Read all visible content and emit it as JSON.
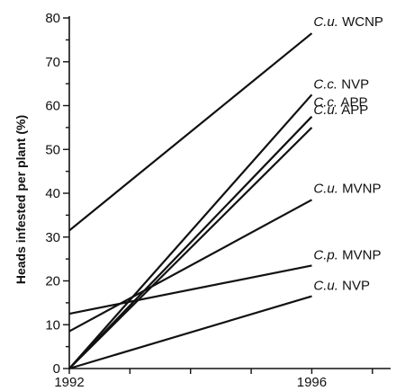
{
  "chart_data": {
    "type": "line",
    "ylabel": "Heads infested per plant (%)",
    "xlabel": "",
    "title": "",
    "x": [
      1992,
      1996
    ],
    "xticks": [
      1992,
      1996
    ],
    "xlim": [
      1992,
      1997.3
    ],
    "ylim": [
      0,
      80
    ],
    "yticks": [
      0,
      10,
      20,
      30,
      40,
      50,
      60,
      70,
      80
    ],
    "grid": false,
    "series": [
      {
        "name": "C.u. WCNP",
        "prefix": "C.u.",
        "site": " WCNP",
        "values": [
          31.5,
          76.5
        ]
      },
      {
        "name": "C.c. NVP",
        "prefix": "C.c.",
        "site": " NVP",
        "values": [
          0,
          62.5
        ]
      },
      {
        "name": "C.c. APP",
        "prefix": "C.c.",
        "site": " APP",
        "values": [
          0,
          57.5
        ]
      },
      {
        "name": "C.u. APP",
        "prefix": "C.u.",
        "site": " APP",
        "values": [
          0,
          55
        ]
      },
      {
        "name": "C.u. MVNP",
        "prefix": "C.u.",
        "site": " MVNP",
        "values": [
          8.5,
          38.5
        ]
      },
      {
        "name": "C.p. MVNP",
        "prefix": "C.p.",
        "site": " MVNP",
        "values": [
          12.5,
          23.5
        ]
      },
      {
        "name": "C.u. NVP",
        "prefix": "C.u.",
        "site": " NVP",
        "values": [
          0,
          16.5
        ]
      }
    ]
  }
}
